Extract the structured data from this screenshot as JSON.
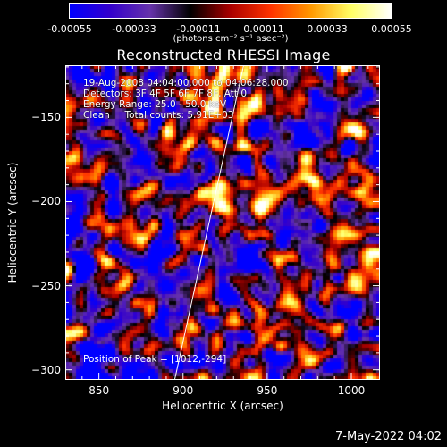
{
  "chart_data": {
    "type": "heatmap",
    "title": "Reconstructed RHESSI Image",
    "colorbar": {
      "tick_labels": [
        "-0.00055",
        "-0.00033",
        "-0.00011",
        "0.00011",
        "0.00033",
        "0.00055"
      ],
      "units": "(photons cm⁻² s⁻¹ asec⁻²)",
      "range": [
        -0.00055,
        0.00055
      ],
      "colors": [
        "#0000ff",
        "#3300cc",
        "#6633aa",
        "#000000",
        "#aa0000",
        "#ff3300",
        "#ff9900",
        "#ffff66",
        "#ffffff"
      ]
    },
    "xlabel": "Heliocentric X (arcsec)",
    "ylabel": "Heliocentric Y (arcsec)",
    "xlim": [
      830,
      1017
    ],
    "ylim": [
      -306,
      -119
    ],
    "xticks": [
      850,
      900,
      950,
      1000
    ],
    "yticks": [
      -150,
      -200,
      -250,
      -300
    ],
    "annotations": [
      "19-Aug-2008 04:04:00.000 to 04:06:28.000",
      "Detectors: 3F 4F 5F 6F 7F 8F, Att 0",
      "Energy Range: 25.0 - 50.0 keV",
      "Clean     Total counts: 5.91E+03"
    ],
    "peak_label": "Position of Peak = [1012,-294]",
    "limb_line": [
      [
        895,
        -306
      ],
      [
        936,
        -119
      ]
    ]
  },
  "footer": {
    "timestamp": "7-May-2022 04:02"
  }
}
